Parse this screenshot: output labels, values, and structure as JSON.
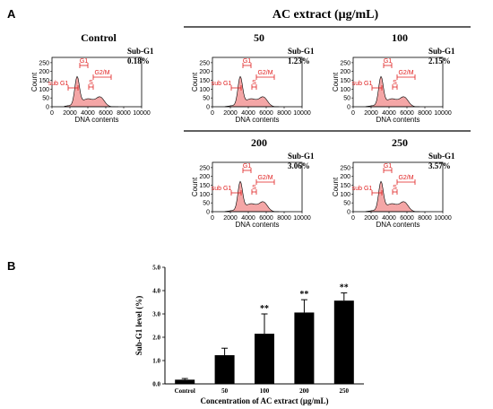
{
  "panel_labels": {
    "a": "A",
    "b": "B"
  },
  "header": {
    "treatment_title": "AC extract (μg/mL)"
  },
  "histogram_common": {
    "y_label": "Count",
    "x_label": "DNA contents",
    "y_ticks": [
      "0",
      "50",
      "100",
      "150",
      "200",
      "250"
    ],
    "x_ticks": [
      "0",
      "2000",
      "4000",
      "6000",
      "8000",
      "10000"
    ],
    "x_range": [
      0,
      10000
    ],
    "y_range": [
      0,
      280
    ],
    "gate_labels": {
      "subg1": "sub G1",
      "g1": "G1",
      "s": "S",
      "g2m": "G2/M"
    },
    "stat_label": "Sub-G1",
    "fill_color": "#f4a6a6",
    "gate_color": "#e01e1e"
  },
  "histograms": [
    {
      "title": "Control",
      "sub_g1": "0.18%",
      "shift": -300
    },
    {
      "title": "50",
      "sub_g1": "1.23%",
      "shift": 0
    },
    {
      "title": "100",
      "sub_g1": "2.15%",
      "shift": 0
    },
    {
      "title": "200",
      "sub_g1": "3.06%",
      "shift": 0
    },
    {
      "title": "250",
      "sub_g1": "3.57%",
      "shift": 0
    }
  ],
  "chart_data": {
    "type": "bar",
    "categories": [
      "Control",
      "50",
      "100",
      "200",
      "250"
    ],
    "values": [
      0.18,
      1.23,
      2.15,
      3.06,
      3.57
    ],
    "errors": [
      0.05,
      0.3,
      0.85,
      0.55,
      0.33
    ],
    "significance": [
      "",
      "",
      "**",
      "**",
      "**"
    ],
    "xlabel": "Concentration of AC extract  (μg/mL)",
    "ylabel": "Sub-G1 level (%)",
    "ylim": [
      0,
      5
    ],
    "y_ticks": [
      "0.0",
      "1.0",
      "2.0",
      "3.0",
      "4.0",
      "5.0"
    ],
    "bar_color": "#000000"
  }
}
